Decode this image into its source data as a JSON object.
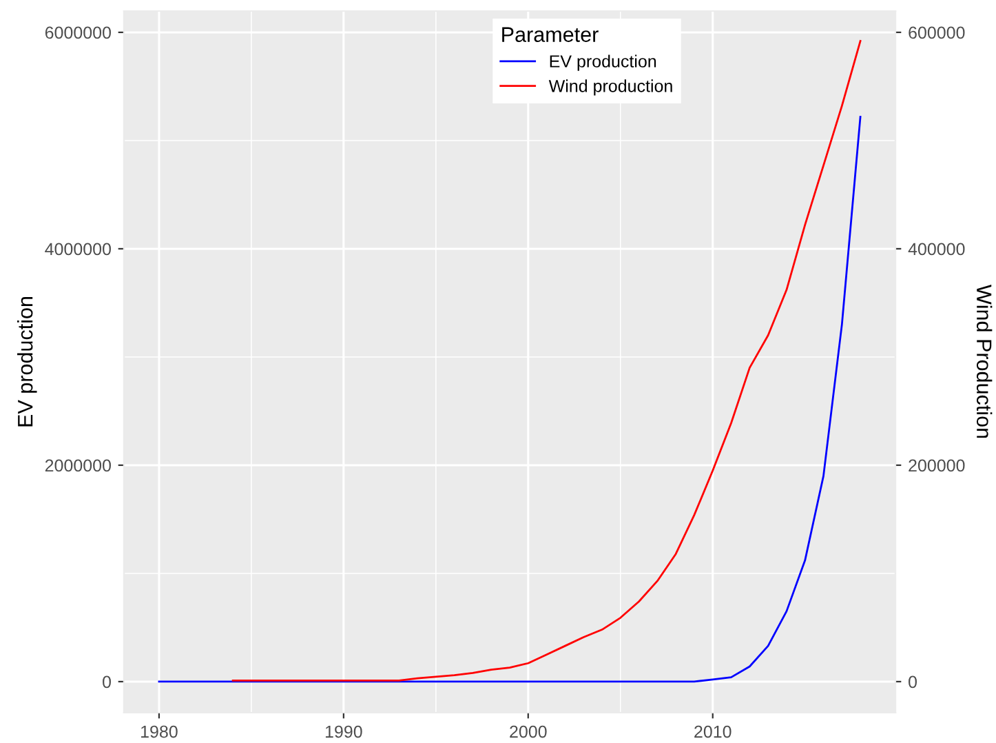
{
  "chart_data": {
    "type": "line",
    "xlabel": null,
    "ylabel": "EV production",
    "y2label": "Wind Production",
    "legend_title": "Parameter",
    "series": [
      {
        "name": "EV production",
        "color": "#0000ff",
        "x": [
          1980,
          1985,
          1990,
          1995,
          2000,
          2005,
          2008,
          2009,
          2010,
          2011,
          2012,
          2013,
          2014,
          2015,
          2016,
          2017,
          2018
        ],
        "values": [
          0,
          0,
          0,
          0,
          0,
          0,
          0,
          0,
          20000,
          40000,
          140000,
          330000,
          650000,
          1120000,
          1900000,
          3300000,
          5220000
        ]
      },
      {
        "name": "Wind production",
        "color": "#ff0000",
        "axis": "y2",
        "x": [
          1984,
          1993,
          1994,
          1996,
          1997,
          1998,
          1999,
          2000,
          2001,
          2002,
          2003,
          2004,
          2005,
          2006,
          2007,
          2008,
          2009,
          2010,
          2011,
          2012,
          2013,
          2014,
          2015,
          2016,
          2017,
          2018
        ],
        "values": [
          1000,
          1000,
          3000,
          6000,
          8000,
          11000,
          13000,
          17000,
          25000,
          33000,
          41000,
          48000,
          59000,
          74000,
          93000,
          118000,
          154000,
          195000,
          239000,
          290000,
          320000,
          362000,
          422000,
          477000,
          532000,
          592000
        ]
      }
    ],
    "xlim": [
      1978.1,
      2019.9
    ],
    "xticks": [
      1980,
      1990,
      2000,
      2010
    ],
    "ylim": [
      -287000,
      6197000
    ],
    "yticks": [
      0,
      2000000,
      4000000,
      6000000
    ],
    "y2lim": [
      -28700,
      619700
    ],
    "y2ticks": [
      0,
      200000,
      400000,
      600000
    ],
    "grid": true,
    "legend": "top",
    "line_style": "solid",
    "marker": "none"
  }
}
